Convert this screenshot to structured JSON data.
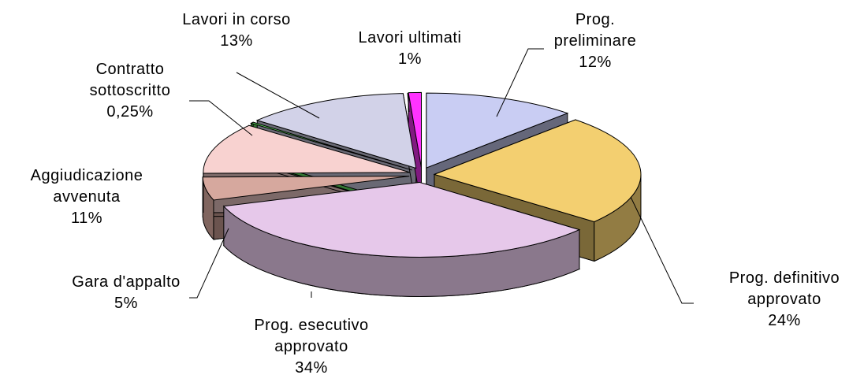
{
  "chart_data": {
    "type": "pie",
    "categories": [
      "Prog. preliminare",
      "Prog. definitivo approvato",
      "Prog. esecutivo approvato",
      "Gara d'appalto",
      "Aggiudicazione avvenuta",
      "Contratto sottoscritto",
      "Lavori in corso",
      "Lavori ultimati"
    ],
    "values": [
      12,
      24,
      34,
      5,
      11,
      0.25,
      13,
      1
    ],
    "value_labels": [
      "12%",
      "24%",
      "34%",
      "5%",
      "11%",
      "0,25%",
      "13%",
      "1%"
    ],
    "colors": [
      "#c9cdf3",
      "#f3cf70",
      "#e6c8ea",
      "#d6a89e",
      "#f8d2d0",
      "#66ee66",
      "#d2d2e8",
      "#ff33ff"
    ]
  }
}
